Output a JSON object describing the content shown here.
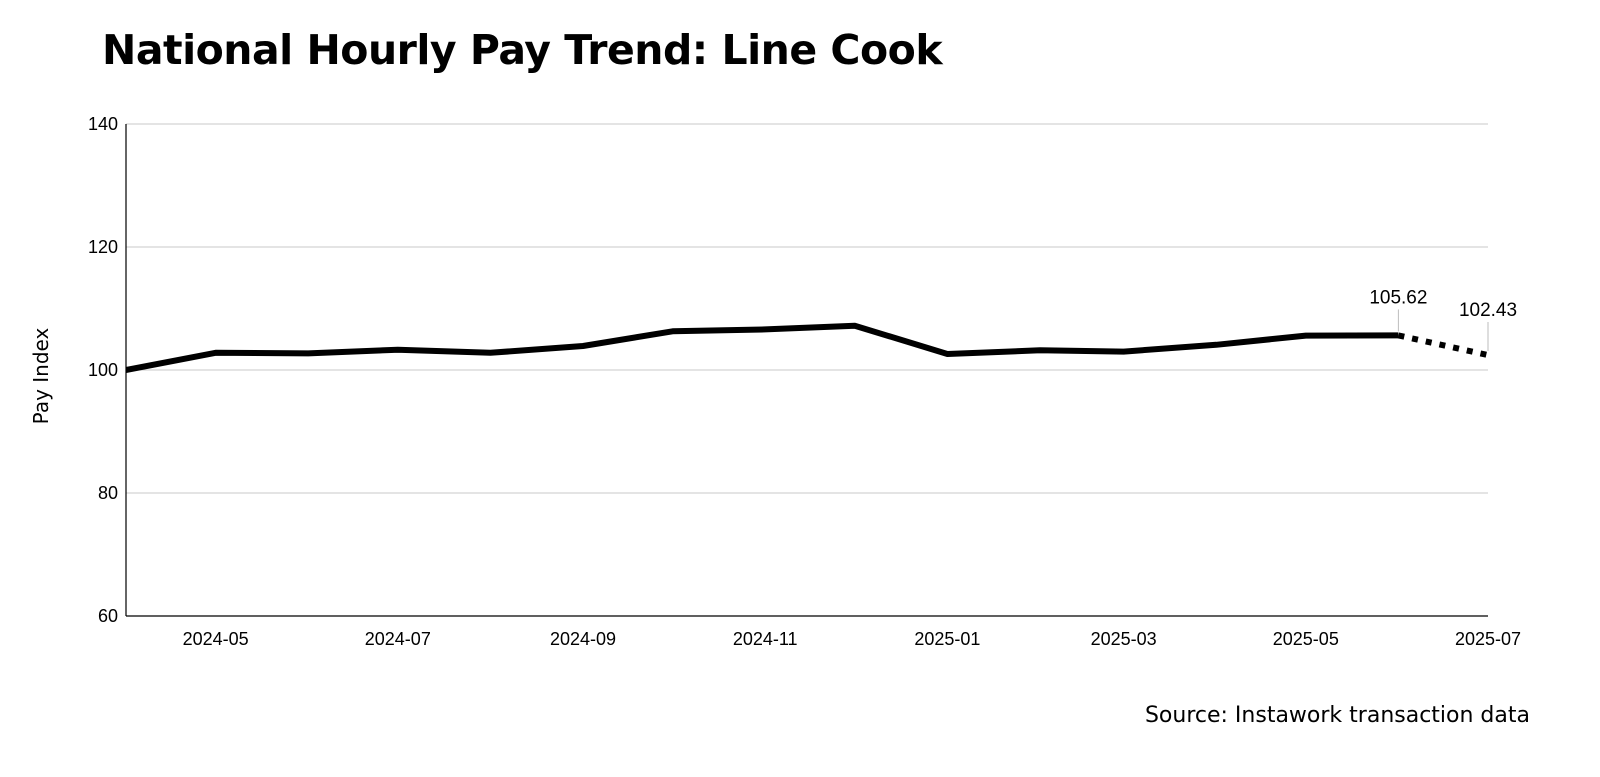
{
  "chart_data": {
    "type": "line",
    "title": "National Hourly Pay Trend: Line Cook",
    "xlabel": "",
    "ylabel": "Pay Index",
    "ylim": [
      60,
      140
    ],
    "yticks": [
      60,
      80,
      100,
      120,
      140
    ],
    "xlim": [
      "2024-04-01",
      "2025-07-01"
    ],
    "xticks": [
      "2024-05",
      "2024-07",
      "2024-09",
      "2024-11",
      "2025-01",
      "2025-03",
      "2025-05",
      "2025-07"
    ],
    "grid": "horizontal",
    "series": [
      {
        "name": "",
        "style": "solid",
        "color": "#000000",
        "x": [
          "2024-04-01",
          "2024-05-01",
          "2024-06-01",
          "2024-07-01",
          "2024-08-01",
          "2024-09-01",
          "2024-10-01",
          "2024-11-01",
          "2024-12-01",
          "2025-01-01",
          "2025-02-01",
          "2025-03-01",
          "2025-04-01",
          "2025-05-01",
          "2025-06-01"
        ],
        "values": [
          100.0,
          102.8,
          102.7,
          103.3,
          102.8,
          103.9,
          106.3,
          106.6,
          107.2,
          102.6,
          103.2,
          103.0,
          104.1,
          105.6,
          105.62
        ]
      },
      {
        "name": "",
        "style": "dotted",
        "color": "#000000",
        "x": [
          "2025-06-01",
          "2025-07-01"
        ],
        "values": [
          105.62,
          102.43
        ]
      }
    ],
    "annotations": [
      {
        "x": "2025-06-01",
        "value": 105.62,
        "text": "105.62"
      },
      {
        "x": "2025-07-01",
        "value": 102.43,
        "text": "102.43"
      }
    ]
  },
  "source_note": "Source: Instawork transaction data"
}
